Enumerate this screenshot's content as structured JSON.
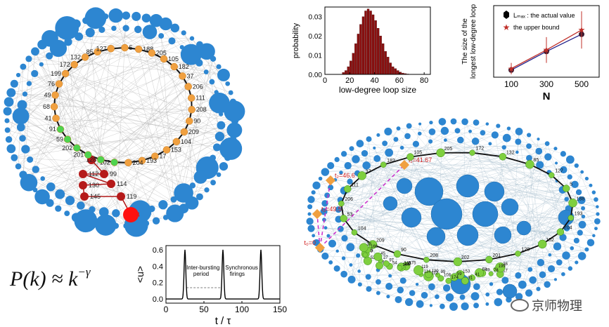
{
  "formula": {
    "lhs": "P(k) ≈ k",
    "exponent": "−γ"
  },
  "watermark": "京师物理",
  "network_left": {
    "loop_labels": [
      "172",
      "132",
      "85",
      "127",
      "5",
      "188",
      "205",
      "105",
      "182",
      "37",
      "206",
      "111",
      "208",
      "90",
      "209",
      "104",
      "153",
      "17",
      "193",
      "204",
      "102",
      "128",
      "201",
      "202",
      "59",
      "91",
      "41",
      "68",
      "49",
      "76",
      "199"
    ],
    "red_labels": [
      "36",
      "99",
      "112",
      "114",
      "130",
      "145",
      "119",
      "4"
    ]
  },
  "network_right": {
    "labels": [
      "206",
      "111",
      "37",
      "182",
      "105",
      "205",
      "172",
      "132",
      "85",
      "127",
      "5",
      "188",
      "193",
      "204",
      "102",
      "128",
      "201",
      "202",
      "208",
      "90",
      "209",
      "104",
      "53",
      "17",
      "36",
      "199",
      "76",
      "49",
      "68",
      "41",
      "91",
      "153",
      "59",
      "174",
      "108",
      "99",
      "112",
      "130",
      "114",
      "119",
      "175",
      "135",
      "145",
      "144",
      "54",
      "61",
      "27",
      "97",
      "52",
      "45",
      "89",
      "70",
      "166",
      "38"
    ],
    "times": [
      "t₁=41.67",
      "t₂=46.6",
      "t₃=49.5",
      "t₀=0"
    ]
  },
  "chart_data": [
    {
      "type": "bar",
      "title": "",
      "xlabel": "low-degree loop size",
      "ylabel": "probability",
      "xlim": [
        0,
        85
      ],
      "ylim": [
        0,
        0.035
      ],
      "xticks": [
        "0",
        "20",
        "40",
        "60",
        "80"
      ],
      "yticks": [
        "0.00",
        "0.01",
        "0.02",
        "0.03"
      ],
      "x": [
        15,
        17,
        19,
        21,
        23,
        25,
        27,
        29,
        31,
        33,
        35,
        37,
        39,
        41,
        43,
        45,
        47,
        49,
        51,
        53,
        55,
        57,
        59,
        61,
        63,
        65,
        67,
        69
      ],
      "values": [
        0.001,
        0.002,
        0.004,
        0.007,
        0.011,
        0.016,
        0.021,
        0.026,
        0.03,
        0.033,
        0.034,
        0.033,
        0.031,
        0.028,
        0.024,
        0.02,
        0.016,
        0.012,
        0.009,
        0.006,
        0.004,
        0.003,
        0.002,
        0.0012,
        0.0007,
        0.0004,
        0.0002,
        0.0001
      ]
    },
    {
      "type": "line",
      "xlabel": "N",
      "ylabel": "The size of the longest low-degree loop",
      "xticks": [
        "100",
        "300",
        "500"
      ],
      "xlim": [
        0,
        600
      ],
      "ylim": [
        0,
        100
      ],
      "legend": [
        "Lₘₐₓ : the actual value",
        "the upper bound"
      ],
      "series": [
        {
          "name": "L_max : the actual value",
          "x": [
            100,
            300,
            500
          ],
          "values": [
            10,
            36,
            60
          ],
          "err": [
            4,
            8,
            10
          ]
        },
        {
          "name": "the upper bound",
          "x": [
            100,
            300,
            500
          ],
          "values": [
            12,
            38,
            66
          ],
          "err": [
            8,
            18,
            26
          ]
        }
      ]
    },
    {
      "type": "line",
      "xlabel": "t / τ",
      "ylabel": "<u>",
      "xticks": [
        "0",
        "50",
        "100",
        "150"
      ],
      "yticks": [
        "0.0",
        "0.2",
        "0.4",
        "0.6"
      ],
      "xlim": [
        0,
        150
      ],
      "ylim": [
        -0.05,
        0.65
      ],
      "spikes": [
        25,
        75,
        125
      ],
      "annotations": [
        "Inter-bursting period",
        "Synchronous firings"
      ]
    }
  ]
}
